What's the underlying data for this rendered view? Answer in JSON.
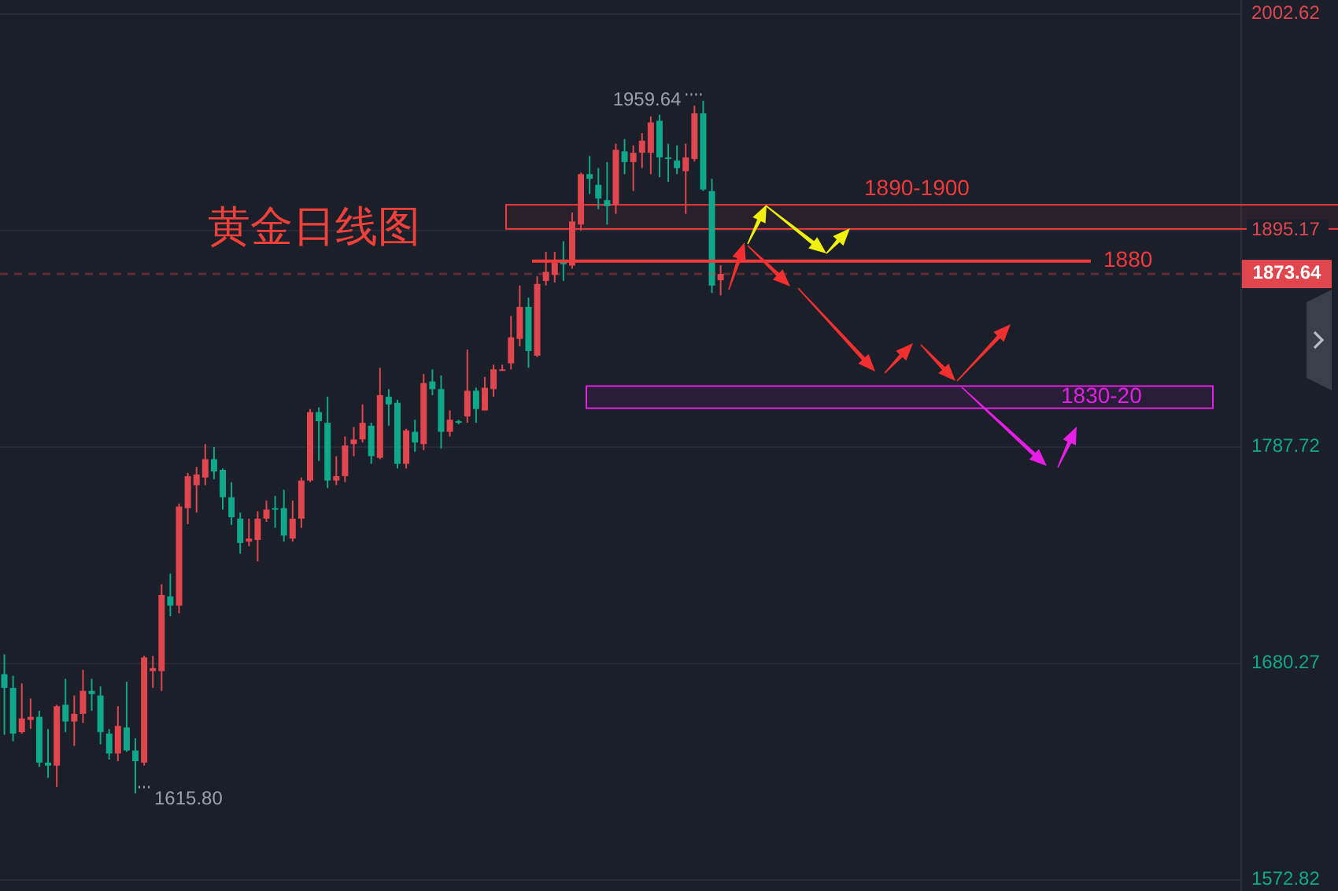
{
  "chart_data": {
    "type": "candlestick",
    "title": "黄金日线图",
    "categories": [
      null,
      null,
      null,
      null,
      null,
      null,
      null,
      null,
      null,
      null,
      null,
      null,
      null,
      null,
      null,
      null,
      null,
      null,
      null,
      null,
      null,
      null,
      null,
      null,
      null,
      null,
      null,
      null,
      null,
      null,
      null,
      null,
      null,
      null,
      null,
      null,
      null,
      null,
      null,
      null,
      null,
      null,
      null,
      null,
      null,
      null,
      null,
      null,
      null,
      null,
      null,
      null,
      null,
      null,
      null,
      null,
      null,
      null,
      null,
      null,
      null,
      null,
      null,
      null,
      null,
      null,
      null,
      null,
      null,
      null,
      null,
      null,
      null,
      null,
      null,
      null,
      null,
      null,
      null,
      null,
      null,
      null,
      null,
      null,
      null,
      null,
      null,
      null,
      null,
      null,
      null,
      null,
      null,
      null,
      null,
      null,
      null,
      null,
      null,
      null,
      null,
      null,
      null,
      null,
      null,
      null,
      null,
      null,
      null,
      null,
      null,
      null,
      null,
      null,
      null,
      null,
      null,
      null,
      null,
      null,
      null,
      null,
      null,
      null,
      null,
      null,
      null,
      null,
      null,
      null,
      null,
      null,
      null,
      null,
      null,
      null,
      null,
      null,
      null,
      null,
      null,
      null
    ],
    "ohlc": [
      [
        1675.0,
        1684.8,
        1644.9,
        1668.2
      ],
      [
        1668.2,
        1674.2,
        1641.7,
        1645.5
      ],
      [
        1646.2,
        1670.4,
        1645.5,
        1653.0
      ],
      [
        1652.3,
        1662.9,
        1647.9,
        1653.8
      ],
      [
        1653.8,
        1656.8,
        1629.0,
        1631.1
      ],
      [
        1631.1,
        1647.7,
        1623.5,
        1629.6
      ],
      [
        1629.6,
        1659.8,
        1619.0,
        1659.1
      ],
      [
        1659.8,
        1672.7,
        1646.2,
        1651.5
      ],
      [
        1651.5,
        1664.4,
        1639.4,
        1655.3
      ],
      [
        1655.3,
        1677.2,
        1650.8,
        1666.7
      ],
      [
        1666.7,
        1672.7,
        1656.8,
        1665.1
      ],
      [
        1664.4,
        1668.9,
        1640.2,
        1646.2
      ],
      [
        1645.5,
        1647.7,
        1632.6,
        1635.6
      ],
      [
        1635.6,
        1659.1,
        1631.8,
        1649.3
      ],
      [
        1648.5,
        1671.2,
        1636.4,
        1637.1
      ],
      [
        1637.1,
        1643.2,
        1615.8,
        1631.8
      ],
      [
        1631.1,
        1684.1,
        1629.6,
        1683.3
      ],
      [
        1676.5,
        1684.1,
        1668.2,
        1678.0
      ],
      [
        1676.5,
        1719.6,
        1666.7,
        1714.3
      ],
      [
        1713.6,
        1724.9,
        1703.7,
        1709.0
      ],
      [
        1709.0,
        1759.7,
        1705.2,
        1758.2
      ],
      [
        1757.4,
        1774.9,
        1749.4,
        1773.3
      ],
      [
        1768.8,
        1777.9,
        1755.2,
        1774.1
      ],
      [
        1772.6,
        1789.2,
        1768.8,
        1781.7
      ],
      [
        1781.7,
        1787.7,
        1771.8,
        1775.6
      ],
      [
        1776.4,
        1777.1,
        1756.7,
        1762.8
      ],
      [
        1762.8,
        1770.3,
        1749.1,
        1752.9
      ],
      [
        1752.2,
        1755.2,
        1734.8,
        1740.1
      ],
      [
        1740.8,
        1752.2,
        1738.5,
        1742.3
      ],
      [
        1741.6,
        1755.9,
        1731.0,
        1752.2
      ],
      [
        1752.2,
        1761.2,
        1750.6,
        1756.7
      ],
      [
        1757.4,
        1763.5,
        1747.6,
        1756.7
      ],
      [
        1757.4,
        1766.5,
        1740.8,
        1743.8
      ],
      [
        1742.3,
        1761.2,
        1740.8,
        1752.2
      ],
      [
        1752.2,
        1772.6,
        1747.6,
        1771.1
      ],
      [
        1771.1,
        1806.6,
        1770.3,
        1805.1
      ],
      [
        1805.1,
        1807.4,
        1780.9,
        1800.6
      ],
      [
        1799.8,
        1812.7,
        1767.3,
        1771.1
      ],
      [
        1771.1,
        1783.2,
        1768.8,
        1773.3
      ],
      [
        1773.3,
        1793.0,
        1770.3,
        1788.5
      ],
      [
        1789.2,
        1797.6,
        1783.2,
        1791.5
      ],
      [
        1791.5,
        1808.9,
        1790.0,
        1799.8
      ],
      [
        1798.3,
        1799.8,
        1779.4,
        1783.2
      ],
      [
        1782.4,
        1827.1,
        1781.7,
        1813.5
      ],
      [
        1812.7,
        1816.5,
        1798.3,
        1808.9
      ],
      [
        1809.7,
        1811.2,
        1777.1,
        1779.4
      ],
      [
        1779.4,
        1796.8,
        1777.1,
        1796.0
      ],
      [
        1795.3,
        1801.3,
        1785.4,
        1790.0
      ],
      [
        1789.2,
        1824.0,
        1786.2,
        1819.5
      ],
      [
        1820.3,
        1826.3,
        1813.5,
        1816.5
      ],
      [
        1816.5,
        1823.3,
        1787.0,
        1795.3
      ],
      [
        1795.3,
        1805.9,
        1793.0,
        1801.3
      ],
      [
        1800.6,
        1801.3,
        1799.0,
        1799.8
      ],
      [
        1802.9,
        1836.1,
        1799.8,
        1815.7
      ],
      [
        1815.7,
        1817.2,
        1799.8,
        1806.6
      ],
      [
        1805.9,
        1822.5,
        1805.9,
        1817.2
      ],
      [
        1816.5,
        1828.6,
        1812.7,
        1826.3
      ],
      [
        1825.6,
        1828.6,
        1825.6,
        1826.3
      ],
      [
        1829.3,
        1852.8,
        1826.3,
        1842.2
      ],
      [
        1841.4,
        1867.9,
        1837.7,
        1857.3
      ],
      [
        1857.3,
        1861.9,
        1827.1,
        1835.4
      ],
      [
        1833.1,
        1872.5,
        1832.5,
        1868.7
      ],
      [
        1870.2,
        1884.6,
        1867.9,
        1874.7
      ],
      [
        1873.2,
        1884.6,
        1869.4,
        1879.3
      ],
      [
        1880.8,
        1889.9,
        1870.2,
        1878.5
      ],
      [
        1877.8,
        1904.2,
        1876.3,
        1899.7
      ],
      [
        1898.2,
        1923.9,
        1895.2,
        1923.2
      ],
      [
        1923.2,
        1932.2,
        1913.3,
        1920.9
      ],
      [
        1917.9,
        1926.2,
        1905.8,
        1911.1
      ],
      [
        1910.3,
        1929.2,
        1898.2,
        1907.3
      ],
      [
        1908.0,
        1938.3,
        1903.5,
        1935.3
      ],
      [
        1934.5,
        1940.6,
        1923.2,
        1929.2
      ],
      [
        1929.2,
        1937.5,
        1914.8,
        1933.8
      ],
      [
        1933.8,
        1943.6,
        1926.2,
        1939.8
      ],
      [
        1933.8,
        1951.9,
        1923.2,
        1948.9
      ],
      [
        1949.7,
        1952.7,
        1921.7,
        1931.5
      ],
      [
        1931.5,
        1938.3,
        1919.4,
        1930.7
      ],
      [
        1930.0,
        1937.5,
        1923.2,
        1926.2
      ],
      [
        1924.7,
        1938.3,
        1903.5,
        1931.5
      ],
      [
        1930.7,
        1957.2,
        1929.5,
        1953.4
      ],
      [
        1953.4,
        1959.64,
        1914.8,
        1915.6
      ],
      [
        1914.8,
        1920.9,
        1864.2,
        1867.9
      ],
      [
        1870.5,
        1878.0,
        1863.0,
        1873.64
      ],
      null,
      null,
      null,
      null,
      null,
      null,
      null,
      null,
      null,
      null,
      null,
      null,
      null,
      null,
      null,
      null,
      null,
      null,
      null,
      null,
      null,
      null,
      null,
      null,
      null,
      null,
      null,
      null,
      null,
      null,
      null,
      null,
      null,
      null,
      null,
      null,
      null,
      null,
      null,
      null,
      null,
      null,
      null,
      null,
      null,
      null,
      null,
      null,
      null,
      null,
      null,
      null,
      null,
      null,
      null,
      null,
      null,
      null,
      null
    ],
    "colors": [
      "#0fa88a",
      "#0fa88a",
      "#e0464e",
      "#e0464e",
      "#0fa88a",
      "#0fa88a",
      "#e0464e",
      "#0fa88a",
      "#e0464e",
      "#e0464e",
      "#0fa88a",
      "#0fa88a",
      "#0fa88a",
      "#e0464e",
      "#0fa88a",
      "#0fa88a",
      "#e0464e",
      "#e0464e",
      "#e0464e",
      "#0fa88a",
      "#e0464e",
      "#e0464e",
      "#e0464e",
      "#e0464e",
      "#0fa88a",
      "#0fa88a",
      "#0fa88a",
      "#0fa88a",
      "#e0464e",
      "#e0464e",
      "#e0464e",
      "#0fa88a",
      "#0fa88a",
      "#e0464e",
      "#e0464e",
      "#e0464e",
      "#0fa88a",
      "#0fa88a",
      "#e0464e",
      "#e0464e",
      "#e0464e",
      "#e0464e",
      "#0fa88a",
      "#e0464e",
      "#0fa88a",
      "#0fa88a",
      "#e0464e",
      "#0fa88a",
      "#e0464e",
      "#0fa88a",
      "#0fa88a",
      "#e0464e",
      "#0fa88a",
      "#e0464e",
      "#0fa88a",
      "#e0464e",
      "#e0464e",
      "#e0464e",
      "#e0464e",
      "#e0464e",
      "#0fa88a",
      "#e0464e",
      "#e0464e",
      "#e0464e",
      "#0fa88a",
      "#e0464e",
      "#e0464e",
      "#0fa88a",
      "#0fa88a",
      "#0fa88a",
      "#e0464e",
      "#0fa88a",
      "#e0464e",
      "#e0464e",
      "#e0464e",
      "#0fa88a",
      "#0fa88a",
      "#0fa88a",
      "#e0464e",
      "#e0464e",
      "#0fa88a",
      "#0fa88a",
      "#e0464e",
      null,
      null,
      null,
      null,
      null,
      null,
      null,
      null,
      null,
      null,
      null,
      null,
      null,
      null,
      null,
      null,
      null,
      null,
      null,
      null,
      null,
      null,
      null,
      null,
      null,
      null,
      null,
      null,
      null,
      null,
      null,
      null,
      null,
      null,
      null,
      null,
      null,
      null,
      null,
      null,
      null,
      null,
      null,
      null,
      null,
      null,
      null,
      null,
      null,
      null,
      null,
      null,
      null,
      null,
      null,
      null,
      null,
      null,
      null
    ],
    "ylim": [
      1572.82,
      2002.62
    ],
    "yticks": [
      1572.82,
      1680.27,
      1787.72,
      1895.17,
      2002.62
    ],
    "grid": "y",
    "tick_labels": "y",
    "ref_lines": [
      {
        "axis": "y",
        "value": 1880,
        "label": "1880",
        "color": "#f23a3a"
      },
      {
        "axis": "y",
        "value": 1873.64,
        "label": "1873.64",
        "color": "#e0464e",
        "line_style": "dashed"
      }
    ],
    "bands": [
      {
        "axis": "y",
        "from": 1896,
        "to": 1908,
        "label": "1890-1900",
        "color": "#f23a3a"
      },
      {
        "axis": "y",
        "from": 1807,
        "to": 1818,
        "label": "1830-20",
        "color": "#e61ee6"
      }
    ],
    "annotations": [
      "1959.64",
      "1615.80"
    ]
  }
}
